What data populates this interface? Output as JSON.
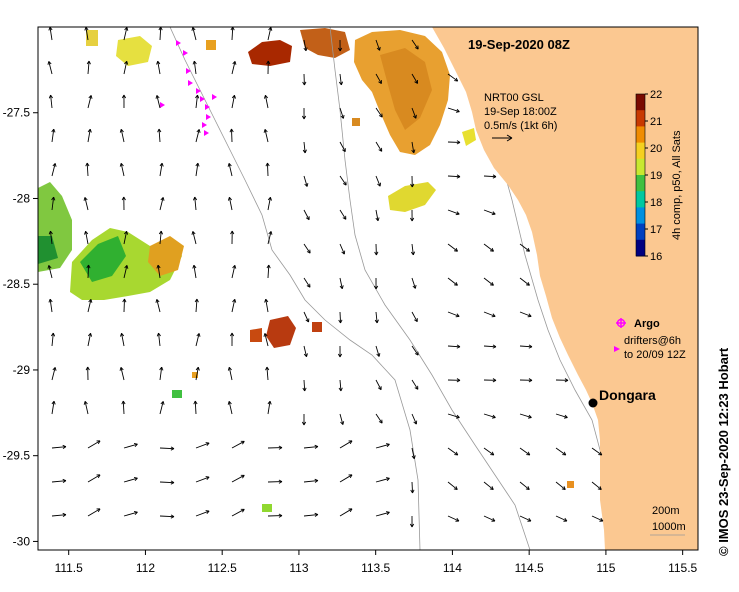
{
  "map": {
    "date_title": "19-Sep-2020 08Z",
    "product_lines": [
      "NRT00 GSL",
      "19-Sep 18:00Z",
      "0.5m/s (1kt 6h)"
    ],
    "colorbar": {
      "label": "4h comp, p50, All Sats",
      "ticks": [
        "22",
        "21",
        "20",
        "19",
        "18",
        "17",
        "16"
      ],
      "colors": [
        "#7a0a00",
        "#c83a00",
        "#f08c00",
        "#f5d020",
        "#c8e830",
        "#40c040",
        "#00c8a0",
        "#0090e0",
        "#0040c0",
        "#000080"
      ]
    },
    "legend": {
      "argo_label": "Argo",
      "drifters_line1": "drifters@6h",
      "drifters_line2": "to 20/09 12Z",
      "argo_color": "#ff00ff"
    },
    "place_label": "Dongara",
    "depth_contours": [
      "200m",
      "1000m"
    ],
    "credit": "© IMOS 23-Sep-2020 12:23 Hobart",
    "x_ticks": [
      "111.5",
      "112",
      "112.5",
      "113",
      "113.5",
      "114",
      "114.5",
      "115",
      "115.5"
    ],
    "y_ticks": [
      "-27.5",
      "-28",
      "-28.5",
      "-29",
      "-29.5",
      "-30"
    ],
    "land_color": "#fbc891"
  }
}
